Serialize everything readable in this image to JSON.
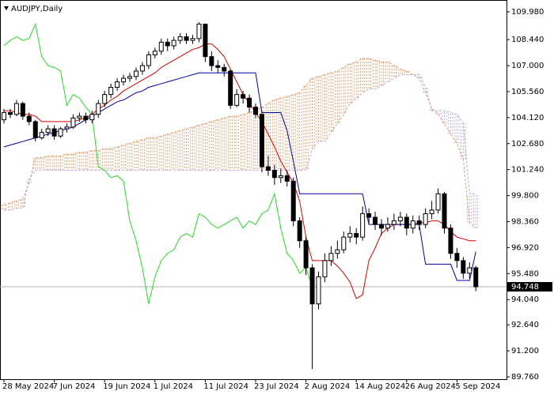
{
  "chart_data": {
    "type": "candlestick",
    "title": "AUDJPY,Daily",
    "categories": [
      "28 May 2024",
      null,
      null,
      null,
      null,
      null,
      null,
      null,
      "7 Jun 2024",
      null,
      null,
      null,
      null,
      null,
      null,
      null,
      "19 Jun 2024",
      null,
      null,
      null,
      null,
      null,
      null,
      null,
      "1 Jul 2024",
      null,
      null,
      null,
      null,
      null,
      null,
      null,
      "11 Jul 2024",
      null,
      null,
      null,
      null,
      null,
      null,
      null,
      "23 Jul 2024",
      null,
      null,
      null,
      null,
      null,
      null,
      null,
      "2 Aug 2024",
      null,
      null,
      null,
      null,
      null,
      null,
      null,
      "14 Aug 2024",
      null,
      null,
      null,
      null,
      null,
      null,
      null,
      "26 Aug 2024",
      null,
      null,
      null,
      null,
      null,
      null,
      null,
      "5 Sep 2024",
      null,
      null,
      null
    ],
    "open": [
      104.0,
      104.4,
      104.3,
      104.9,
      104.2,
      103.9,
      103.0,
      103.3,
      103.5,
      103.1,
      103.5,
      103.6,
      104.1,
      104.2,
      104.0,
      104.3,
      104.9,
      105.4,
      105.8,
      106.1,
      106.3,
      106.4,
      106.7,
      107.0,
      107.6,
      107.8,
      108.3,
      108.1,
      108.4,
      108.6,
      108.4,
      108.5,
      109.3,
      107.5,
      107.0,
      106.9,
      106.7,
      104.8,
      105.4,
      105.2,
      104.7,
      104.3,
      101.4,
      101.2,
      100.8,
      100.9,
      100.6,
      98.4,
      97.3,
      95.8,
      93.8,
      95.3,
      96.2,
      96.6,
      96.8,
      97.5,
      97.7,
      97.5,
      98.8,
      98.6,
      98.2,
      98.0,
      98.2,
      98.4,
      98.6,
      98.0,
      98.4,
      98.2,
      98.8,
      99.0,
      99.9,
      98.0,
      96.6,
      96.2,
      95.5,
      95.8
    ],
    "high": [
      104.6,
      104.6,
      105.1,
      105.0,
      104.4,
      104.0,
      103.5,
      103.7,
      103.7,
      103.6,
      103.8,
      104.3,
      104.4,
      104.4,
      104.5,
      105.1,
      105.6,
      106.0,
      106.3,
      106.5,
      106.6,
      106.9,
      107.2,
      107.8,
      108.0,
      108.5,
      108.5,
      108.6,
      108.8,
      108.8,
      108.7,
      109.4,
      109.3,
      107.8,
      107.3,
      107.1,
      106.8,
      105.7,
      105.6,
      105.4,
      104.9,
      104.5,
      102.0,
      101.5,
      101.3,
      101.2,
      100.8,
      98.6,
      97.5,
      96.0,
      95.6,
      96.6,
      97.0,
      97.3,
      97.8,
      98.1,
      98.0,
      99.2,
      99.1,
      98.9,
      98.5,
      98.6,
      98.8,
      98.9,
      98.8,
      98.7,
      98.7,
      99.1,
      99.5,
      100.2,
      100.0,
      98.2,
      96.9,
      96.4,
      96.1,
      95.9
    ],
    "low": [
      103.8,
      104.1,
      104.2,
      104.0,
      103.7,
      102.8,
      102.9,
      103.1,
      102.9,
      103.0,
      103.3,
      103.5,
      103.9,
      103.8,
      103.8,
      104.1,
      104.7,
      105.2,
      105.6,
      105.9,
      106.1,
      106.2,
      106.5,
      106.8,
      107.4,
      107.6,
      107.8,
      107.9,
      108.2,
      108.2,
      108.2,
      108.3,
      107.2,
      106.7,
      106.6,
      106.4,
      104.6,
      104.7,
      104.9,
      104.4,
      104.1,
      101.1,
      100.9,
      100.4,
      100.5,
      100.3,
      98.1,
      96.9,
      95.4,
      90.2,
      93.5,
      95.0,
      95.9,
      96.3,
      96.6,
      97.2,
      97.1,
      97.3,
      98.2,
      97.9,
      97.6,
      97.8,
      97.9,
      98.1,
      97.6,
      97.7,
      97.9,
      98.0,
      98.5,
      98.8,
      97.7,
      96.3,
      95.8,
      95.2,
      95.2,
      94.5
    ],
    "close": [
      104.4,
      104.3,
      104.9,
      104.2,
      103.9,
      103.0,
      103.3,
      103.5,
      103.1,
      103.5,
      103.6,
      104.1,
      104.2,
      104.0,
      104.3,
      104.9,
      105.4,
      105.8,
      106.1,
      106.3,
      106.4,
      106.7,
      107.0,
      107.6,
      107.8,
      108.3,
      108.1,
      108.4,
      108.6,
      108.4,
      108.5,
      109.3,
      107.5,
      107.0,
      106.9,
      106.7,
      104.8,
      105.4,
      105.2,
      104.7,
      104.3,
      101.4,
      101.2,
      100.8,
      100.9,
      100.6,
      98.4,
      97.3,
      95.8,
      93.8,
      95.3,
      96.2,
      96.6,
      96.8,
      97.5,
      97.7,
      97.5,
      98.8,
      98.6,
      98.2,
      98.0,
      98.2,
      98.4,
      98.6,
      98.0,
      98.4,
      98.2,
      98.8,
      99.0,
      99.9,
      98.0,
      96.6,
      96.2,
      95.5,
      95.8,
      94.748
    ],
    "color_up": "#ffffff",
    "color_down": "#000000",
    "lines": [
      {
        "color": "#dd0000",
        "values": [
          104.5,
          104.5,
          104.4,
          104.3,
          104.3,
          104.2,
          103.9,
          103.9,
          103.9,
          103.9,
          103.9,
          103.9,
          104.0,
          104.1,
          104.3,
          104.6,
          104.8,
          105.1,
          105.3,
          105.6,
          105.8,
          106.0,
          106.2,
          106.4,
          106.6,
          106.9,
          107.1,
          107.3,
          107.5,
          107.7,
          107.9,
          108.0,
          108.2,
          108.2,
          107.9,
          107.5,
          106.8,
          106.1,
          105.4,
          104.9,
          104.4,
          103.9,
          103.2,
          102.5,
          101.7,
          101.1,
          100.5,
          99.5,
          97.5,
          96.2,
          96.2,
          96.2,
          96.2,
          95.9,
          95.5,
          95.0,
          94.1,
          94.3,
          96.2,
          96.9,
          97.7,
          98.0,
          98.2,
          98.2,
          98.2,
          98.2,
          98.3,
          98.3,
          98.4,
          98.4,
          98.2,
          97.8,
          97.5,
          97.4,
          97.3,
          97.3
        ]
      },
      {
        "color": "#0000aa",
        "values": [
          102.5,
          102.6,
          102.7,
          102.8,
          102.9,
          103.0,
          103.1,
          103.2,
          103.3,
          103.4,
          103.5,
          103.6,
          103.8,
          104.0,
          104.2,
          104.4,
          104.6,
          104.8,
          105.0,
          105.1,
          105.3,
          105.5,
          105.6,
          105.8,
          105.9,
          106.0,
          106.1,
          106.2,
          106.3,
          106.4,
          106.5,
          106.6,
          106.6,
          106.6,
          106.6,
          106.6,
          106.6,
          106.6,
          106.6,
          106.6,
          106.6,
          104.4,
          104.4,
          104.4,
          104.4,
          103.4,
          101.7,
          99.9,
          99.9,
          99.9,
          99.9,
          99.9,
          99.9,
          99.9,
          99.9,
          99.9,
          99.9,
          99.9,
          98.2,
          98.2,
          98.2,
          98.2,
          98.2,
          98.2,
          98.2,
          98.2,
          98.2,
          96.0,
          96.0,
          96.0,
          96.0,
          96.0,
          95.1,
          95.1,
          95.1,
          96.7
        ]
      },
      {
        "color": "#22dd22",
        "values": [
          108.1,
          108.4,
          108.6,
          108.4,
          108.5,
          109.3,
          107.5,
          107.0,
          106.9,
          106.7,
          104.8,
          105.4,
          105.2,
          104.7,
          104.3,
          101.4,
          101.2,
          100.8,
          100.9,
          100.6,
          98.4,
          97.3,
          95.8,
          93.8,
          95.3,
          96.2,
          96.6,
          96.8,
          97.5,
          97.7,
          97.5,
          98.8,
          98.6,
          98.2,
          98.0,
          98.2,
          98.4,
          98.6,
          98.0,
          98.4,
          98.2,
          98.8,
          99.0,
          99.9,
          98.0,
          96.6,
          96.2,
          95.5,
          95.8,
          94.748,
          null,
          null,
          null,
          null,
          null,
          null,
          null,
          null,
          null,
          null,
          null,
          null,
          null,
          null,
          null,
          null,
          null,
          null,
          null,
          null,
          null,
          null,
          null,
          null,
          null,
          null
        ]
      }
    ],
    "cloud": {
      "color_up": "#e0a070",
      "color_down": "#b8a8d8",
      "span_a": [
        99.3,
        99.4,
        99.5,
        99.6,
        100.5,
        101.9,
        101.9,
        102.0,
        102.0,
        102.0,
        102.1,
        102.1,
        102.2,
        102.2,
        102.3,
        102.3,
        102.4,
        102.4,
        102.5,
        102.6,
        102.7,
        102.8,
        102.9,
        103.0,
        103.0,
        103.1,
        103.2,
        103.3,
        103.4,
        103.5,
        103.6,
        103.7,
        103.8,
        103.9,
        104.0,
        104.1,
        104.2,
        104.2,
        104.3,
        104.4,
        104.5,
        104.7,
        104.9,
        105.1,
        105.2,
        105.3,
        105.4,
        105.5,
        105.9,
        106.3,
        106.4,
        106.5,
        106.6,
        106.7,
        106.9,
        107.1,
        107.2,
        107.4,
        107.4,
        107.3,
        107.2,
        107.2,
        107.0,
        106.8,
        106.7,
        106.5,
        106.3,
        105.5,
        104.6,
        104.3,
        103.8,
        103.2,
        102.7,
        101.8,
        98.3,
        98.0
      ],
      "span_b": [
        99.0,
        99.0,
        99.1,
        99.1,
        100.7,
        101.2,
        101.2,
        101.2,
        101.2,
        101.2,
        101.2,
        101.2,
        101.2,
        101.2,
        101.2,
        101.2,
        101.2,
        101.2,
        101.2,
        101.2,
        101.2,
        101.2,
        101.2,
        101.2,
        101.2,
        101.2,
        101.2,
        101.2,
        101.2,
        101.2,
        101.2,
        101.2,
        101.2,
        101.2,
        101.2,
        101.2,
        101.2,
        101.2,
        101.2,
        101.2,
        101.2,
        101.2,
        101.2,
        101.2,
        101.2,
        101.2,
        101.2,
        101.2,
        101.2,
        102.4,
        102.8,
        102.8,
        103.3,
        103.8,
        104.3,
        104.9,
        105.2,
        105.5,
        105.7,
        105.7,
        105.9,
        106.1,
        106.3,
        106.5,
        106.5,
        106.5,
        106.5,
        105.8,
        104.5,
        104.5,
        104.5,
        104.4,
        104.3,
        103.8,
        99.9,
        99.9
      ]
    },
    "ylim": [
      89.76,
      109.98
    ],
    "yticks": [
      {
        "value": 109.98,
        "label": "109.980"
      },
      {
        "value": 108.44,
        "label": "108.440"
      },
      {
        "value": 107.0,
        "label": "107.000"
      },
      {
        "value": 105.56,
        "label": "105.560"
      },
      {
        "value": 104.12,
        "label": "104.120"
      },
      {
        "value": 102.68,
        "label": "102.680"
      },
      {
        "value": 101.24,
        "label": "101.240"
      },
      {
        "value": 99.8,
        "label": "99.800"
      },
      {
        "value": 98.36,
        "label": "98.360"
      },
      {
        "value": 96.92,
        "label": "96.920"
      },
      {
        "value": 95.48,
        "label": "95.480"
      },
      {
        "value": 94.04,
        "label": "94.040"
      },
      {
        "value": 92.64,
        "label": "92.640"
      },
      {
        "value": 91.2,
        "label": "91.200"
      },
      {
        "value": 89.76,
        "label": "89.760"
      }
    ],
    "grid": false
  }
}
